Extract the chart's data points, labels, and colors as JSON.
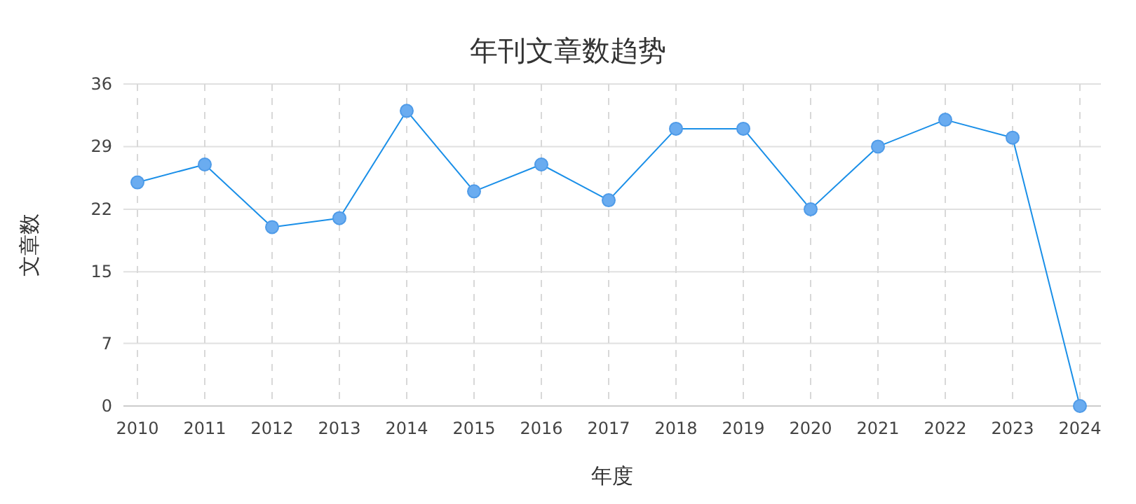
{
  "chart_data": {
    "type": "line",
    "title": "年刊文章数趋势",
    "xlabel": "年度",
    "ylabel": "文章数",
    "categories": [
      "2010",
      "2011",
      "2012",
      "2013",
      "2014",
      "2015",
      "2016",
      "2017",
      "2018",
      "2019",
      "2020",
      "2021",
      "2022",
      "2023",
      "2024"
    ],
    "series": [
      {
        "color": "#1a8fe8",
        "values": [
          25,
          27,
          20,
          21,
          33,
          24,
          27,
          23,
          31,
          31,
          22,
          29,
          32,
          30,
          0
        ]
      }
    ],
    "ylim": [
      0,
      36
    ],
    "yticks": [
      0,
      7,
      15,
      22,
      29,
      36
    ],
    "grid": true,
    "marker": "circle",
    "line_style": "solid"
  }
}
